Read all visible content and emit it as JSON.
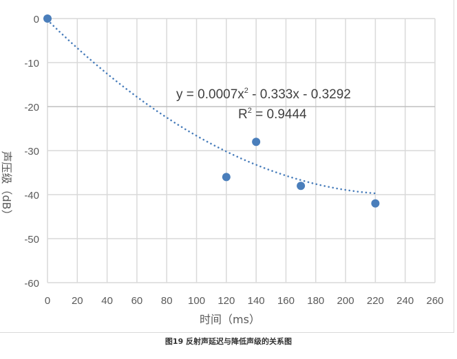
{
  "chart_data": {
    "type": "scatter",
    "xlabel": "时间（ms）",
    "ylabel": "声压级（dB）",
    "xlim": [
      0,
      260
    ],
    "ylim": [
      -60,
      0
    ],
    "xticks": [
      0,
      20,
      40,
      60,
      80,
      100,
      120,
      140,
      160,
      180,
      200,
      220,
      240,
      260
    ],
    "yticks": [
      0,
      -10,
      -20,
      -30,
      -40,
      -50,
      -60
    ],
    "grid": true,
    "points": [
      {
        "x": 0,
        "y": 0
      },
      {
        "x": 120,
        "y": -36
      },
      {
        "x": 140,
        "y": -28
      },
      {
        "x": 170,
        "y": -38
      },
      {
        "x": 220,
        "y": -42
      }
    ],
    "trendline": {
      "type": "polynomial",
      "coefficients": [
        0.0007,
        -0.333,
        -0.3292
      ],
      "x_range": [
        0,
        220
      ],
      "style": "dotted",
      "equation_text": "y = 0.0007x",
      "equation_sup": "2",
      "equation_rest": " - 0.333x - 0.3292",
      "r2_prefix": "R",
      "r2_sup": "2",
      "r2_rest": " = 0.9444"
    },
    "colors": {
      "marker": "#4a7ebb",
      "grid": "#d9d9d9",
      "text": "#595959"
    }
  },
  "caption": "图19 反射声延迟与降低声级的关系图"
}
